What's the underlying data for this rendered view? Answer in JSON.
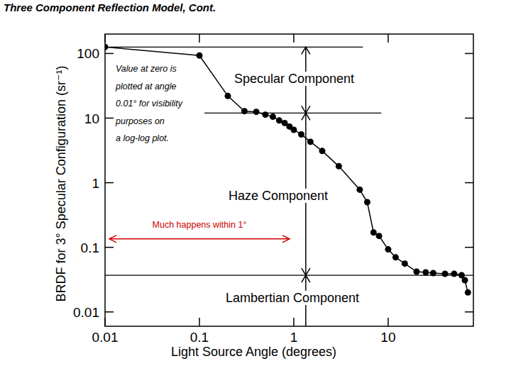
{
  "chart_data": {
    "type": "line",
    "title": "Three Component Reflection Model, Cont.",
    "x_label": "Light Source Angle (degrees)",
    "y_label": "BRDF for 3° Specular Configuration (sr⁻¹)",
    "log": true,
    "marker": "circle",
    "color": "#000000",
    "xlim": [
      0.01,
      80
    ],
    "ylim": [
      0.006,
      200
    ],
    "xticks": [
      0.01,
      0.1,
      1,
      10
    ],
    "yticks": [
      0.01,
      0.1,
      1,
      10,
      100
    ],
    "x": [
      0.01,
      0.1,
      0.2,
      0.3,
      0.4,
      0.5,
      0.6,
      0.7,
      0.8,
      0.9,
      1.0,
      1.2,
      1.5,
      2,
      3,
      5,
      6,
      7,
      8,
      10,
      12,
      15,
      20,
      25,
      30,
      40,
      50,
      60,
      65,
      70
    ],
    "values": [
      126,
      93,
      22,
      12.8,
      12.5,
      11.3,
      10.5,
      9.2,
      8.4,
      7.4,
      6.6,
      5.6,
      4.3,
      3.1,
      1.8,
      0.78,
      0.5,
      0.17,
      0.15,
      0.093,
      0.07,
      0.056,
      0.042,
      0.041,
      0.04,
      0.039,
      0.039,
      0.037,
      0.031,
      0.02
    ],
    "reference_levels": [
      126,
      12,
      0.037
    ],
    "note": [
      "Value at zero is",
      "plotted at angle",
      "0.01° for visibility",
      "purposes on",
      "a log-log plot."
    ],
    "component_labels": [
      "Specular Component",
      "Haze Component",
      "Lambertian Component"
    ],
    "span_annotation": {
      "text": "Much happens within 1°",
      "span": [
        0.01,
        1
      ],
      "color": "#cc0000"
    }
  }
}
